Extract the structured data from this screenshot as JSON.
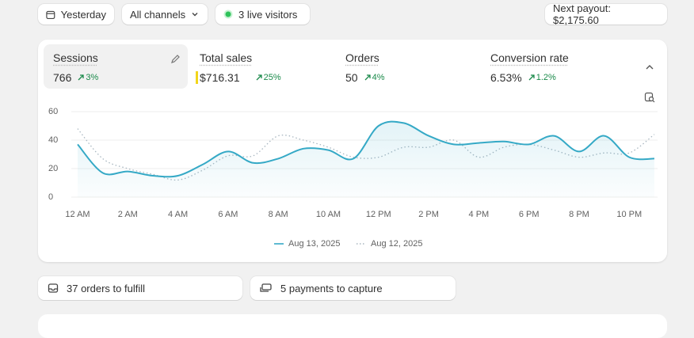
{
  "toolbar": {
    "date": "Yesterday",
    "channels": "All channels",
    "live": "3 live visitors",
    "payout": "Next payout: $2,175.60"
  },
  "metrics": [
    {
      "label": "Sessions",
      "value": "766",
      "change": "3%"
    },
    {
      "label": "Total sales",
      "value": "$716.31",
      "change": "25%"
    },
    {
      "label": "Orders",
      "value": "50",
      "change": "4%"
    },
    {
      "label": "Conversion rate",
      "value": "6.53%",
      "change": "1.2%"
    }
  ],
  "chart_data": {
    "type": "line",
    "categories": [
      "12 AM",
      null,
      "2 AM",
      null,
      "4 AM",
      null,
      "6 AM",
      null,
      "8 AM",
      null,
      "10 AM",
      null,
      "12 PM",
      null,
      "2 PM",
      null,
      "4 PM",
      null,
      "6 PM",
      null,
      "8 PM",
      null,
      "10 PM",
      null
    ],
    "series": [
      {
        "name": "Aug 13, 2025",
        "color": "#35a9c6",
        "line_style": "solid",
        "fill": true,
        "values": [
          37,
          17,
          18,
          15,
          15,
          23,
          32,
          24,
          27,
          34,
          33,
          27,
          50,
          52,
          43,
          37,
          38,
          39,
          37,
          43,
          32,
          43,
          28,
          27
        ]
      },
      {
        "name": "Aug 12, 2025",
        "color": "#a8b6c0",
        "line_style": "dotted",
        "fill": false,
        "values": [
          48,
          27,
          20,
          16,
          12,
          19,
          29,
          29,
          43,
          40,
          35,
          28,
          28,
          35,
          35,
          40,
          28,
          35,
          37,
          33,
          28,
          31,
          31,
          44
        ]
      }
    ],
    "ylim": [
      0,
      60
    ],
    "yticks": [
      0,
      20,
      40,
      60
    ],
    "grid": true
  },
  "tasks": [
    "37 orders to fulfill",
    "5 payments to capture"
  ]
}
